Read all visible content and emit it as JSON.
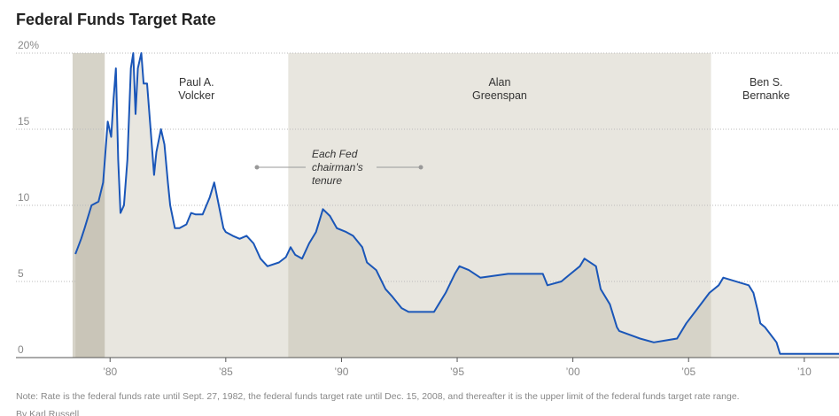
{
  "chart_data": {
    "type": "line",
    "title": "Federal Funds Target Rate",
    "note": "Note: Rate is the federal funds rate until Sept. 27, 1982, the federal funds target rate until Dec. 15, 2008, and thereafter it is the upper limit of the federal funds target rate range.",
    "byline": "By Karl Russell",
    "annotation": [
      "Each Fed",
      "chairman’s",
      "tenure"
    ],
    "tenures": [
      {
        "start": 1978.38,
        "end": 1979.77
      },
      {
        "start": 1979.77,
        "end": 1987.7,
        "label": [
          "Paul A.",
          "Volcker"
        ]
      },
      {
        "start": 1987.7,
        "end": 2005.97,
        "label": [
          "Alan",
          "Greenspan"
        ]
      },
      {
        "start": 2005.97,
        "end": 2011.5,
        "label": [
          "Ben S.",
          "Bernanke"
        ]
      }
    ],
    "xlim": [
      1978,
      2011.5
    ],
    "xticks": [
      {
        "value": 1980,
        "label": "’80"
      },
      {
        "value": 1985,
        "label": "’85"
      },
      {
        "value": 1990,
        "label": "’90"
      },
      {
        "value": 1995,
        "label": "’95"
      },
      {
        "value": 2000,
        "label": "’00"
      },
      {
        "value": 2005,
        "label": "’05"
      },
      {
        "value": 2010,
        "label": "’10"
      }
    ],
    "ylim": [
      0,
      20
    ],
    "yticks": [
      0,
      5,
      10,
      15,
      {
        "value": 20,
        "label": "20%"
      }
    ],
    "grid": true,
    "series": [
      {
        "name": "Federal funds rate",
        "color": "#1a56b8",
        "x": [
          1978.5,
          1978.6,
          1978.75,
          1978.9,
          1979.0,
          1979.2,
          1979.5,
          1979.7,
          1979.8,
          1979.9,
          1980.05,
          1980.15,
          1980.25,
          1980.35,
          1980.45,
          1980.6,
          1980.75,
          1980.9,
          1981.0,
          1981.1,
          1981.2,
          1981.35,
          1981.45,
          1981.6,
          1981.8,
          1981.9,
          1982.0,
          1982.2,
          1982.35,
          1982.5,
          1982.6,
          1982.8,
          1983.0,
          1983.3,
          1983.5,
          1983.7,
          1984.0,
          1984.3,
          1984.5,
          1984.7,
          1984.9,
          1985.0,
          1985.3,
          1985.6,
          1985.9,
          1986.2,
          1986.5,
          1986.8,
          1987.3,
          1987.6,
          1987.8,
          1988.0,
          1988.3,
          1988.6,
          1988.9,
          1989.2,
          1989.5,
          1989.8,
          1990.2,
          1990.5,
          1990.9,
          1991.1,
          1991.5,
          1991.9,
          1992.2,
          1992.6,
          1992.9,
          1993.5,
          1994.0,
          1994.2,
          1994.5,
          1994.9,
          1995.1,
          1995.5,
          1996.0,
          1997.2,
          1998.7,
          1998.9,
          1999.5,
          1999.9,
          2000.3,
          2000.5,
          2001.0,
          2001.2,
          2001.6,
          2001.9,
          2002.0,
          2002.9,
          2003.5,
          2004.5,
          2004.9,
          2005.4,
          2005.9,
          2006.3,
          2006.5,
          2007.6,
          2007.8,
          2008.0,
          2008.1,
          2008.3,
          2008.8,
          2008.95,
          2011.5
        ],
        "values": [
          6.8,
          7.2,
          7.8,
          8.5,
          9.0,
          10.0,
          10.25,
          11.5,
          13.5,
          15.5,
          14.5,
          17.0,
          19.0,
          13.0,
          9.5,
          10.0,
          13.0,
          19.0,
          20.0,
          16.0,
          19.0,
          20.0,
          18.0,
          18.0,
          14.0,
          12.0,
          13.5,
          15.0,
          14.0,
          11.5,
          10.0,
          8.5,
          8.5,
          8.75,
          9.5,
          9.4,
          9.4,
          10.5,
          11.5,
          10.0,
          8.5,
          8.25,
          8.0,
          7.8,
          8.0,
          7.5,
          6.5,
          6.0,
          6.25,
          6.6,
          7.25,
          6.75,
          6.5,
          7.5,
          8.25,
          9.75,
          9.3,
          8.5,
          8.25,
          8.0,
          7.25,
          6.25,
          5.75,
          4.5,
          4.0,
          3.25,
          3.0,
          3.0,
          3.0,
          3.5,
          4.25,
          5.5,
          6.0,
          5.75,
          5.25,
          5.5,
          5.5,
          4.75,
          5.0,
          5.5,
          6.0,
          6.5,
          6.0,
          4.5,
          3.5,
          2.0,
          1.75,
          1.25,
          1.0,
          1.25,
          2.25,
          3.25,
          4.25,
          4.75,
          5.25,
          4.75,
          4.25,
          3.0,
          2.25,
          2.0,
          1.0,
          0.25,
          0.25
        ]
      }
    ]
  }
}
